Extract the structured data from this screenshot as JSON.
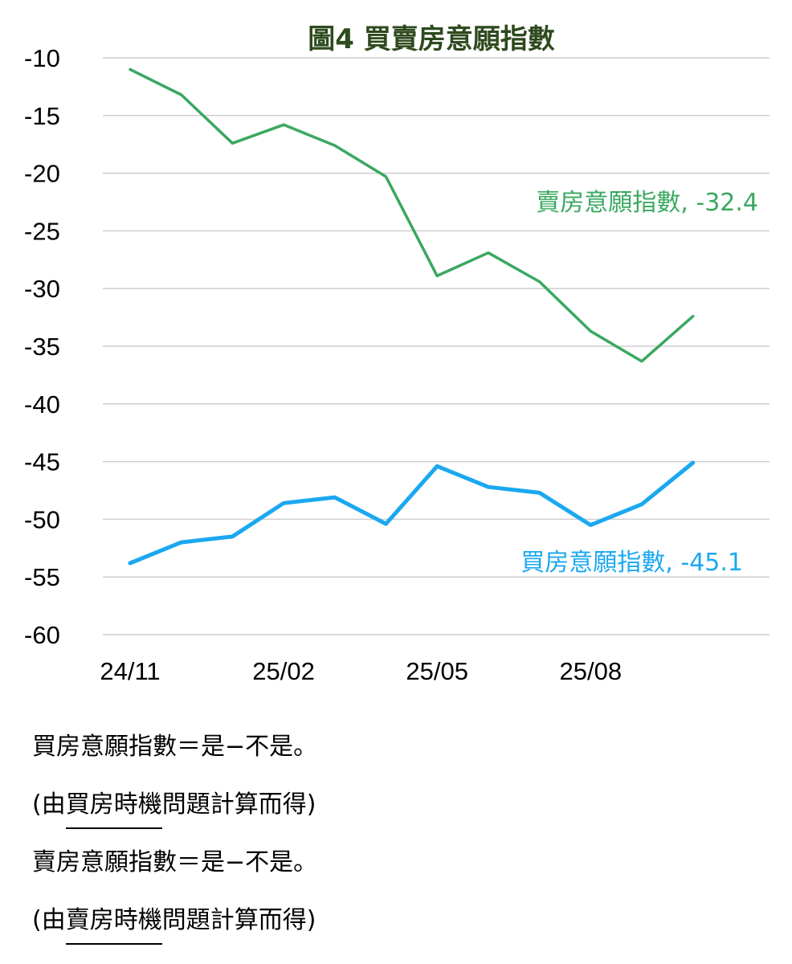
{
  "chart_data": {
    "type": "line",
    "title": "圖4  買賣房意願指數",
    "x": [
      "24/11",
      "24/12",
      "25/01",
      "25/02",
      "25/03",
      "25/04",
      "25/05",
      "25/06",
      "25/07",
      "25/08",
      "25/09",
      "25/10"
    ],
    "xticklabels": [
      "24/11",
      "25/02",
      "25/05",
      "25/08"
    ],
    "ylim": [
      -60,
      -10
    ],
    "yticks": [
      -10,
      -15,
      -20,
      -25,
      -30,
      -35,
      -40,
      -45,
      -50,
      -55,
      -60
    ],
    "yticklabels": [
      "-10",
      "-15",
      "-20",
      "-25",
      "-30",
      "-35",
      "-40",
      "-45",
      "-50",
      "-55",
      "-60"
    ],
    "grid": true,
    "series": [
      {
        "name": "賣房意願指數",
        "label": "賣房意願指數, -32.4",
        "color": "#3aa860",
        "values": [
          -11.0,
          -13.2,
          -17.4,
          -15.8,
          -17.6,
          -20.3,
          -28.9,
          -26.9,
          -29.4,
          -33.7,
          -36.3,
          -32.4
        ]
      },
      {
        "name": "買房意願指數",
        "label": "買房意願指數, -45.1",
        "color": "#1ba8f0",
        "values": [
          -53.8,
          -52.0,
          -51.5,
          -48.6,
          -48.1,
          -50.4,
          -45.4,
          -47.2,
          -47.7,
          -50.5,
          -48.7,
          -45.1
        ]
      }
    ]
  },
  "notes": {
    "buy_formula": "買房意願指數＝是−不是。",
    "buy_source_open": "(由",
    "buy_source_topic": "買房時機",
    "buy_source_close": "問題計算而得)",
    "sell_formula": "賣房意願指數＝是−不是。",
    "sell_source_open": "(由",
    "sell_source_topic": "賣房時機",
    "sell_source_close": "問題計算而得)"
  }
}
